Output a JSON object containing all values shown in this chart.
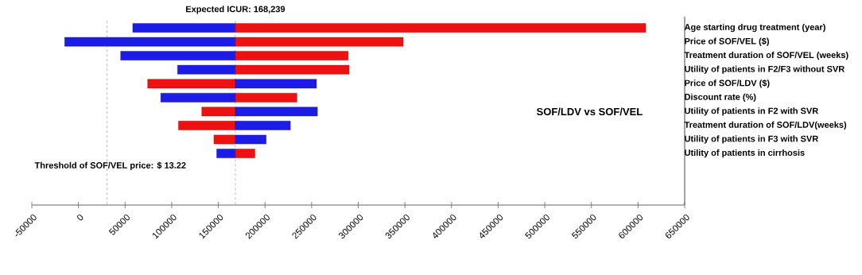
{
  "chart_data": {
    "type": "bar",
    "orientation": "horizontal",
    "categories": [
      "Age starting drug treatment (year)",
      "Price of SOF/VEL ($)",
      "Treatment duration of SOF/VEL (weeks)",
      "Utility of patients in F2/F3 without SVR",
      "Price of SOF/LDV ($)",
      "Discount rate (%)",
      "Utility of patients in F2 with SVR",
      "Treatment duration of SOF/LDV(weeks)",
      "Utility of patients in F3 with SVR",
      "Utility of patients in cirrhosis"
    ],
    "series": [
      {
        "base": [
          168239,
          168239,
          168239,
          168239,
          168239,
          168239,
          168239,
          168239,
          168239,
          168239
        ],
        "values": [
          -110000,
          -183000,
          -123000,
          -62000,
          -94000,
          -80000,
          -36000,
          -61000,
          -23000,
          -20000
        ],
        "colors": [
          "#1c1ce6",
          "#1c1ce6",
          "#1c1ce6",
          "#1c1ce6",
          "#ee1111",
          "#1c1ce6",
          "#ee1111",
          "#ee1111",
          "#ee1111",
          "#1c1ce6"
        ]
      },
      {
        "base": [
          168239,
          168239,
          168239,
          168239,
          168239,
          168239,
          168239,
          168239,
          168239,
          168239
        ],
        "values": [
          440000,
          180000,
          121000,
          122000,
          87000,
          66000,
          88000,
          59000,
          33000,
          21000
        ],
        "colors": [
          "#ee1111",
          "#ee1111",
          "#ee1111",
          "#ee1111",
          "#1c1ce6",
          "#ee1111",
          "#1c1ce6",
          "#1c1ce6",
          "#1c1ce6",
          "#ee1111"
        ]
      }
    ],
    "xlim": [
      -50000,
      650000
    ],
    "xticks": [
      -50000,
      0,
      50000,
      100000,
      150000,
      200000,
      250000,
      300000,
      350000,
      400000,
      450000,
      500000,
      550000,
      600000,
      650000
    ],
    "ref_lines": [
      {
        "axis": "x",
        "value": 168239,
        "label": "Expected ICUR:  168,239",
        "color": "#b0b0b0",
        "line_style": "dashed"
      },
      {
        "axis": "x",
        "value": 30700,
        "label": "Threshold of SOF/VEL price: $ 13.22",
        "color": "#b0b0b0",
        "line_style": "dashed"
      }
    ],
    "annotations": [
      "SOF/LDV vs SOF/VEL"
    ],
    "grid": false
  }
}
